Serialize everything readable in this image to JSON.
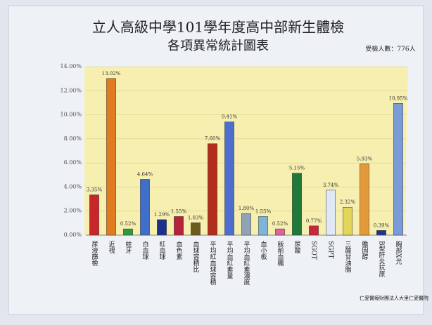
{
  "chart_data": {
    "type": "bar",
    "title": "立人高級中學101學年度高中部新生體檢",
    "subtitle": "各項異常統計圖表",
    "annotation": "受檢人數：776人",
    "footer": "仁愛醫療財團法人大里仁愛醫院",
    "categories": [
      "尿液篩檢",
      "近視",
      "蛀牙",
      "白血球",
      "紅血球",
      "血色素",
      "血球容積比",
      "平均紅血球容積",
      "平均血紅素量",
      "平均血紅素濃度",
      "血小板",
      "飯前血糖",
      "尿酸",
      "SGOT",
      "SGPT",
      "三酸甘油脂",
      "膽固醇",
      "B型肝炎抗原",
      "胸部X光"
    ],
    "values": [
      3.35,
      13.02,
      0.52,
      4.64,
      1.29,
      1.55,
      1.03,
      7.6,
      9.41,
      1.8,
      1.55,
      0.52,
      5.15,
      0.77,
      3.74,
      2.32,
      5.93,
      0.39,
      10.95
    ],
    "value_labels": [
      "3.35%",
      "13.02%",
      "0.52%",
      "4.64%",
      "1.29%",
      "1.55%",
      "1.03%",
      "7.60%",
      "9.41%",
      "1.80%",
      "1.55%",
      "0.52%",
      "5.15%",
      "0.77%",
      "3.74%",
      "2.32%",
      "5.93%",
      "0.39%",
      "10.95%"
    ],
    "colors": [
      "#c8262b",
      "#e07b20",
      "#2e9a3c",
      "#3f6fc8",
      "#1e2f8c",
      "#b4233a",
      "#6b5d1e",
      "#b32d1c",
      "#4f6fcf",
      "#8fa3b4",
      "#7fb3d8",
      "#e0629a",
      "#1f7a3a",
      "#c8263a",
      "#dfe8f4",
      "#e3d45a",
      "#e39a3a",
      "#24338a",
      "#7a9ad8"
    ],
    "ylim": [
      0,
      14
    ],
    "yticks": [
      {
        "value": 0,
        "label": "0.00%"
      },
      {
        "value": 2,
        "label": "2.00%"
      },
      {
        "value": 4,
        "label": "4.00%"
      },
      {
        "value": 6,
        "label": "6.00%"
      },
      {
        "value": 8,
        "label": "8.00%"
      },
      {
        "value": 10,
        "label": "10.00%"
      },
      {
        "value": 12,
        "label": "12.00%"
      },
      {
        "value": 14,
        "label": "14.00%"
      }
    ],
    "grid": true
  }
}
